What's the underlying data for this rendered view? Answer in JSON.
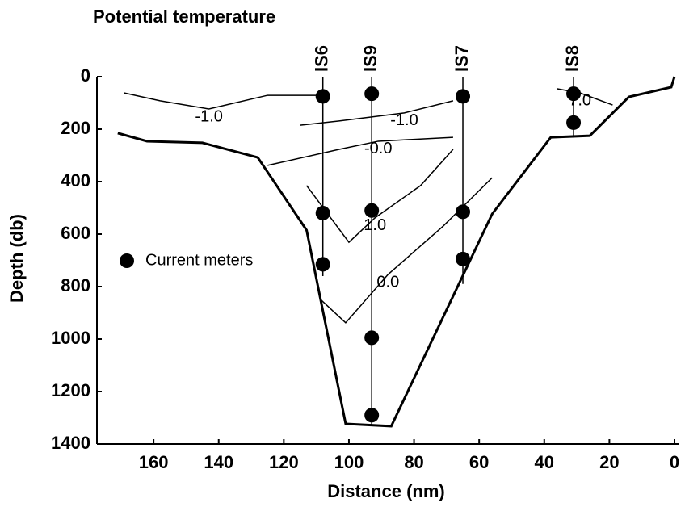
{
  "chart_data": {
    "type": "section",
    "title": "Potential temperature",
    "xlabel": "Distance (nm)",
    "ylabel": "Depth (db)",
    "xlim": [
      177.4,
      0
    ],
    "xticks": [
      160,
      140,
      120,
      100,
      80,
      60,
      40,
      20,
      0
    ],
    "ylim": [
      0,
      1400
    ],
    "yticks": [
      0,
      200,
      400,
      600,
      800,
      1000,
      1200,
      1400
    ],
    "bottom": {
      "x": [
        171,
        162,
        145,
        128,
        113,
        101,
        87,
        56,
        38,
        26,
        14,
        1,
        0
      ],
      "y": [
        215,
        246,
        252,
        308,
        585,
        1323,
        1332,
        523,
        231,
        225,
        77,
        40,
        0
      ]
    },
    "stations": {
      "names": [
        "IS6",
        "IS9",
        "IS7",
        "IS8"
      ],
      "x": [
        108,
        93,
        65,
        31
      ],
      "y": [
        760,
        1330,
        790,
        230
      ]
    },
    "meters": {
      "name": "Current meters",
      "color": "#000000",
      "x": [
        108,
        108,
        108,
        93,
        93,
        93,
        93,
        65,
        65,
        65,
        31,
        31
      ],
      "y": [
        75,
        520,
        715,
        65,
        510,
        995,
        1290,
        75,
        515,
        695,
        65,
        175
      ]
    },
    "contours": [
      {
        "label": "1.0",
        "x": [
          113,
          100,
          92,
          78,
          68
        ],
        "y": [
          415,
          631,
          538,
          415,
          277
        ]
      },
      {
        "label": "0.0",
        "x": [
          109,
          101,
          88,
          71,
          56
        ],
        "y": [
          846,
          938,
          754,
          569,
          385
        ]
      },
      {
        "label": "-1.0",
        "x": [
          169,
          158,
          143,
          125,
          108
        ],
        "y": [
          62,
          92,
          123,
          71,
          71
        ]
      },
      {
        "label": "-0.0",
        "x": [
          125,
          103,
          91,
          68
        ],
        "y": [
          338,
          277,
          246,
          231
        ]
      },
      {
        "label": "-1.0",
        "x": [
          115,
          103,
          83,
          68
        ],
        "y": [
          185,
          169,
          138,
          92
        ]
      },
      {
        "label": "7.0",
        "x": [
          36,
          29,
          19
        ],
        "y": [
          46,
          62,
          108
        ]
      }
    ]
  }
}
